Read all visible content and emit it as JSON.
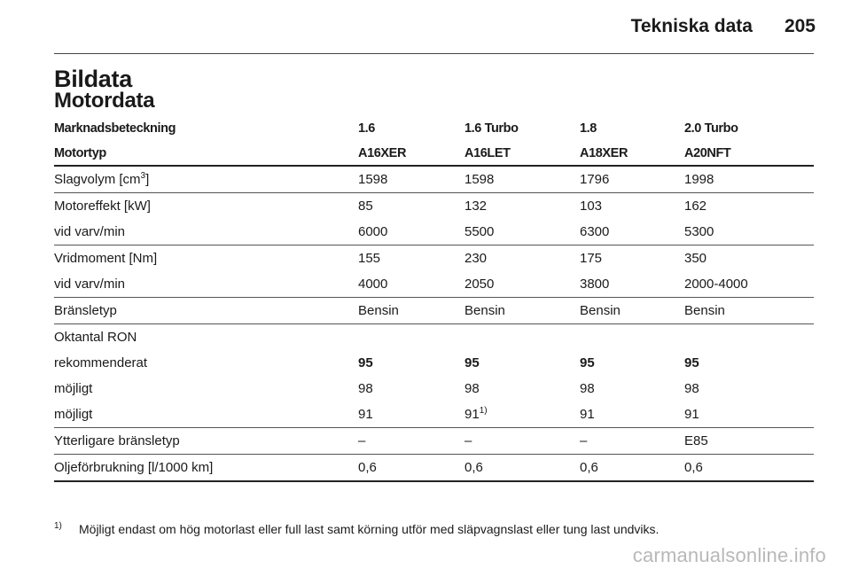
{
  "header": {
    "title": "Tekniska data",
    "page_number": "205"
  },
  "section": {
    "title": "Bildata",
    "subtitle": "Motordata"
  },
  "table": {
    "header_rows": [
      [
        "Marknadsbeteckning",
        "1.6",
        "1.6 Turbo",
        "1.8",
        "2.0 Turbo"
      ],
      [
        "Motortyp",
        "A16XER",
        "A16LET",
        "A18XER",
        "A20NFT"
      ]
    ],
    "displacement": {
      "label_text": "Slagvolym [cm",
      "label_sup": "3",
      "label_end": "]",
      "values": [
        "1598",
        "1598",
        "1796",
        "1998"
      ]
    },
    "power": {
      "label": "Motoreffekt [kW]",
      "values": [
        "85",
        "132",
        "103",
        "162"
      ]
    },
    "power_rpm": {
      "label": "vid varv/min",
      "values": [
        "6000",
        "5500",
        "6300",
        "5300"
      ]
    },
    "torque": {
      "label": "Vridmoment [Nm]",
      "values": [
        "155",
        "230",
        "175",
        "350"
      ]
    },
    "torque_rpm": {
      "label": "vid varv/min",
      "values": [
        "4000",
        "2050",
        "3800",
        "2000-4000"
      ]
    },
    "fuel_type": {
      "label": "Bränsletyp",
      "values": [
        "Bensin",
        "Bensin",
        "Bensin",
        "Bensin"
      ]
    },
    "octane": {
      "label": "Oktantal RON"
    },
    "recommended": {
      "label": "rekommenderat",
      "values": [
        "95",
        "95",
        "95",
        "95"
      ]
    },
    "possible_1": {
      "label": "möjligt",
      "values": [
        "98",
        "98",
        "98",
        "98"
      ]
    },
    "possible_2": {
      "label": "möjligt",
      "values": [
        "91",
        "91",
        "91",
        "91"
      ],
      "footnote_ref": "1)"
    },
    "additional_fuel": {
      "label": "Ytterligare bränsletyp",
      "values": [
        "–",
        "–",
        "–",
        "E85"
      ]
    },
    "oil_consumption": {
      "label": "Oljeförbrukning [l/1000 km]",
      "values": [
        "0,6",
        "0,6",
        "0,6",
        "0,6"
      ]
    }
  },
  "footnote": {
    "mark": "1)",
    "text": "Möjligt endast om hög motorlast eller full last samt körning utför med släpvagnslast eller tung last undviks."
  },
  "watermark": "carmanualsonline.info"
}
